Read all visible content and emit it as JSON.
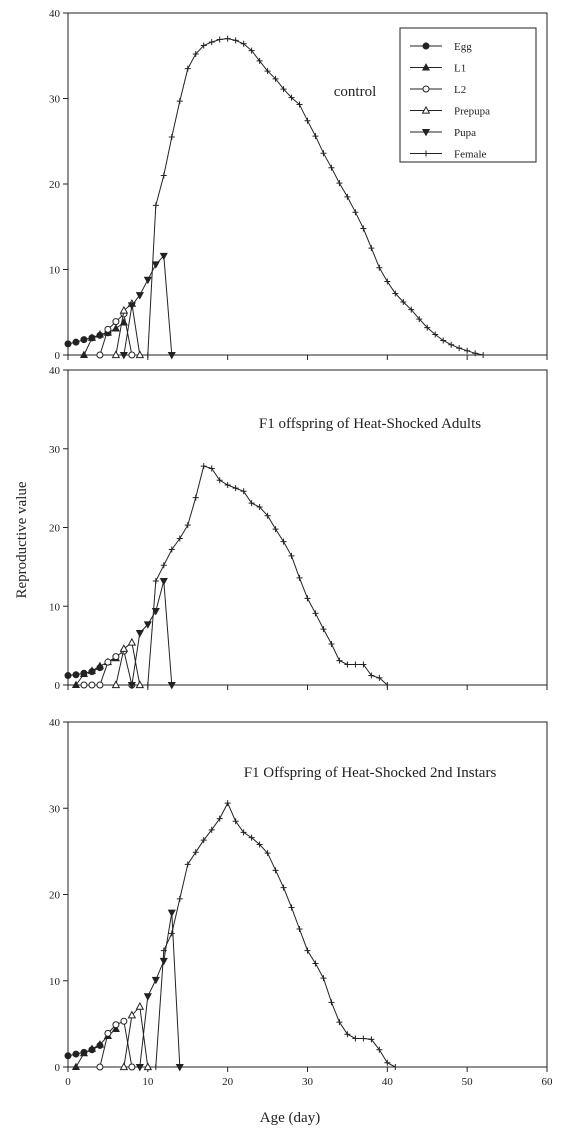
{
  "chart_data": {
    "type": "line",
    "xlabel": "Age (day)",
    "ylabel": "Reproductive value",
    "xlim": [
      0,
      60
    ],
    "ylim": [
      0,
      40
    ],
    "xticks": [
      0,
      10,
      20,
      30,
      40,
      50,
      60
    ],
    "yticks": [
      0,
      10,
      20,
      30,
      40
    ],
    "legend": {
      "placement": "top-right",
      "entries": [
        {
          "name": "Egg",
          "marker": "filled-circle"
        },
        {
          "name": "L1",
          "marker": "filled-triangle-up"
        },
        {
          "name": "L2",
          "marker": "open-circle"
        },
        {
          "name": "Prepupa",
          "marker": "open-triangle-up"
        },
        {
          "name": "Pupa",
          "marker": "filled-triangle-down"
        },
        {
          "name": "Female",
          "marker": "plus"
        }
      ]
    },
    "panels": [
      {
        "title": "control",
        "series": [
          {
            "name": "Egg",
            "marker": "filled-circle",
            "points": [
              [
                0,
                1.3
              ],
              [
                1,
                1.5
              ],
              [
                2,
                1.8
              ],
              [
                3,
                2.0
              ],
              [
                4,
                2.3
              ],
              [
                5,
                2.6
              ]
            ]
          },
          {
            "name": "L1",
            "marker": "filled-triangle-up",
            "points": [
              [
                2,
                0
              ],
              [
                3,
                2.0
              ],
              [
                4,
                2.4
              ],
              [
                5,
                2.6
              ],
              [
                6,
                3.1
              ],
              [
                7,
                3.8
              ]
            ]
          },
          {
            "name": "L2",
            "marker": "open-circle",
            "points": [
              [
                4,
                0
              ],
              [
                5,
                3.0
              ],
              [
                6,
                3.9
              ],
              [
                7,
                4.8
              ],
              [
                8,
                0
              ]
            ]
          },
          {
            "name": "Prepupa",
            "marker": "open-triangle-up",
            "points": [
              [
                6,
                0
              ],
              [
                7,
                5.2
              ],
              [
                8,
                6.0
              ],
              [
                9,
                0
              ]
            ]
          },
          {
            "name": "Pupa",
            "marker": "filled-triangle-down",
            "points": [
              [
                7,
                0
              ],
              [
                8,
                5.8
              ],
              [
                9,
                7.0
              ],
              [
                10,
                8.8
              ],
              [
                11,
                10.6
              ],
              [
                12,
                11.6
              ],
              [
                13,
                0
              ]
            ]
          },
          {
            "name": "Female",
            "marker": "plus",
            "points": [
              [
                10,
                0
              ],
              [
                11,
                17.5
              ],
              [
                12,
                21.0
              ],
              [
                13,
                25.5
              ],
              [
                14,
                29.7
              ],
              [
                15,
                33.5
              ],
              [
                16,
                35.2
              ],
              [
                17,
                36.2
              ],
              [
                18,
                36.6
              ],
              [
                19,
                36.9
              ],
              [
                20,
                37.0
              ],
              [
                21,
                36.8
              ],
              [
                22,
                36.4
              ],
              [
                23,
                35.6
              ],
              [
                24,
                34.4
              ],
              [
                25,
                33.2
              ],
              [
                26,
                32.3
              ],
              [
                27,
                31.1
              ],
              [
                28,
                30.1
              ],
              [
                29,
                29.3
              ],
              [
                30,
                27.4
              ],
              [
                31,
                25.6
              ],
              [
                32,
                23.6
              ],
              [
                33,
                21.9
              ],
              [
                34,
                20.1
              ],
              [
                35,
                18.5
              ],
              [
                36,
                16.7
              ],
              [
                37,
                14.8
              ],
              [
                38,
                12.5
              ],
              [
                39,
                10.2
              ],
              [
                40,
                8.6
              ],
              [
                41,
                7.2
              ],
              [
                42,
                6.2
              ],
              [
                43,
                5.3
              ],
              [
                44,
                4.2
              ],
              [
                45,
                3.2
              ],
              [
                46,
                2.4
              ],
              [
                47,
                1.7
              ],
              [
                48,
                1.2
              ],
              [
                49,
                0.8
              ],
              [
                50,
                0.5
              ],
              [
                51,
                0.2
              ],
              [
                52,
                0
              ]
            ]
          }
        ]
      },
      {
        "title": "F1 offspring of Heat-Shocked Adults",
        "series": [
          {
            "name": "Egg",
            "marker": "filled-circle",
            "points": [
              [
                0,
                1.2
              ],
              [
                1,
                1.3
              ],
              [
                2,
                1.5
              ],
              [
                3,
                1.7
              ],
              [
                4,
                2.2
              ]
            ]
          },
          {
            "name": "L1",
            "marker": "filled-triangle-up",
            "points": [
              [
                1,
                0
              ],
              [
                2,
                1.4
              ],
              [
                3,
                1.8
              ],
              [
                4,
                2.4
              ],
              [
                5,
                2.9
              ],
              [
                6,
                3.4
              ]
            ]
          },
          {
            "name": "L2",
            "marker": "open-circle",
            "points": [
              [
                2,
                0
              ],
              [
                3,
                0
              ],
              [
                4,
                0
              ],
              [
                5,
                2.9
              ],
              [
                6,
                3.6
              ],
              [
                7,
                4.3
              ],
              [
                8,
                0
              ]
            ]
          },
          {
            "name": "Prepupa",
            "marker": "open-triangle-up",
            "points": [
              [
                6,
                0
              ],
              [
                7,
                4.6
              ],
              [
                8,
                5.4
              ],
              [
                9,
                0
              ]
            ]
          },
          {
            "name": "Pupa",
            "marker": "filled-triangle-down",
            "points": [
              [
                8,
                0
              ],
              [
                9,
                6.6
              ],
              [
                10,
                7.7
              ],
              [
                11,
                9.4
              ],
              [
                12,
                13.2
              ],
              [
                13,
                0
              ]
            ]
          },
          {
            "name": "Female",
            "marker": "plus",
            "points": [
              [
                10,
                0
              ],
              [
                11,
                13.2
              ],
              [
                12,
                15.2
              ],
              [
                13,
                17.2
              ],
              [
                14,
                18.6
              ],
              [
                15,
                20.3
              ],
              [
                16,
                23.8
              ],
              [
                17,
                27.8
              ],
              [
                18,
                27.5
              ],
              [
                19,
                26.0
              ],
              [
                20,
                25.4
              ],
              [
                21,
                25.0
              ],
              [
                22,
                24.6
              ],
              [
                23,
                23.1
              ],
              [
                24,
                22.6
              ],
              [
                25,
                21.5
              ],
              [
                26,
                19.8
              ],
              [
                27,
                18.2
              ],
              [
                28,
                16.4
              ],
              [
                29,
                13.6
              ],
              [
                30,
                11.0
              ],
              [
                31,
                9.1
              ],
              [
                32,
                7.1
              ],
              [
                33,
                5.2
              ],
              [
                34,
                3.1
              ],
              [
                35,
                2.6
              ],
              [
                36,
                2.6
              ],
              [
                37,
                2.6
              ],
              [
                38,
                1.2
              ],
              [
                39,
                0.9
              ],
              [
                40,
                0
              ]
            ]
          }
        ]
      },
      {
        "title": "F1 Offspring of Heat-Shocked 2nd Instars",
        "series": [
          {
            "name": "Egg",
            "marker": "filled-circle",
            "points": [
              [
                0,
                1.3
              ],
              [
                1,
                1.5
              ],
              [
                2,
                1.7
              ],
              [
                3,
                2.0
              ],
              [
                4,
                2.5
              ]
            ]
          },
          {
            "name": "L1",
            "marker": "filled-triangle-up",
            "points": [
              [
                1,
                0
              ],
              [
                2,
                1.6
              ],
              [
                3,
                2.1
              ],
              [
                4,
                2.6
              ],
              [
                5,
                3.6
              ],
              [
                6,
                4.4
              ]
            ]
          },
          {
            "name": "L2",
            "marker": "open-circle",
            "points": [
              [
                4,
                0
              ],
              [
                5,
                3.9
              ],
              [
                6,
                4.9
              ],
              [
                7,
                5.3
              ],
              [
                8,
                0
              ]
            ]
          },
          {
            "name": "Prepupa",
            "marker": "open-triangle-up",
            "points": [
              [
                7,
                0
              ],
              [
                8,
                6.0
              ],
              [
                9,
                7.0
              ],
              [
                10,
                0
              ]
            ]
          },
          {
            "name": "Pupa",
            "marker": "filled-triangle-down",
            "points": [
              [
                9,
                0
              ],
              [
                10,
                8.2
              ],
              [
                11,
                10.1
              ],
              [
                12,
                12.3
              ],
              [
                13,
                17.9
              ],
              [
                14,
                0
              ]
            ]
          },
          {
            "name": "Female",
            "marker": "plus",
            "points": [
              [
                11,
                0
              ],
              [
                12,
                13.5
              ],
              [
                13,
                15.5
              ],
              [
                14,
                19.5
              ],
              [
                15,
                23.5
              ],
              [
                16,
                24.9
              ],
              [
                17,
                26.3
              ],
              [
                18,
                27.5
              ],
              [
                19,
                28.8
              ],
              [
                20,
                30.6
              ],
              [
                21,
                28.5
              ],
              [
                22,
                27.2
              ],
              [
                23,
                26.6
              ],
              [
                24,
                25.8
              ],
              [
                25,
                24.8
              ],
              [
                26,
                22.8
              ],
              [
                27,
                20.8
              ],
              [
                28,
                18.5
              ],
              [
                29,
                16.0
              ],
              [
                30,
                13.5
              ],
              [
                31,
                12.0
              ],
              [
                32,
                10.3
              ],
              [
                33,
                7.5
              ],
              [
                34,
                5.2
              ],
              [
                35,
                3.8
              ],
              [
                36,
                3.3
              ],
              [
                37,
                3.3
              ],
              [
                38,
                3.2
              ],
              [
                39,
                2.0
              ],
              [
                40,
                0.5
              ],
              [
                41,
                0
              ]
            ]
          }
        ]
      }
    ]
  }
}
